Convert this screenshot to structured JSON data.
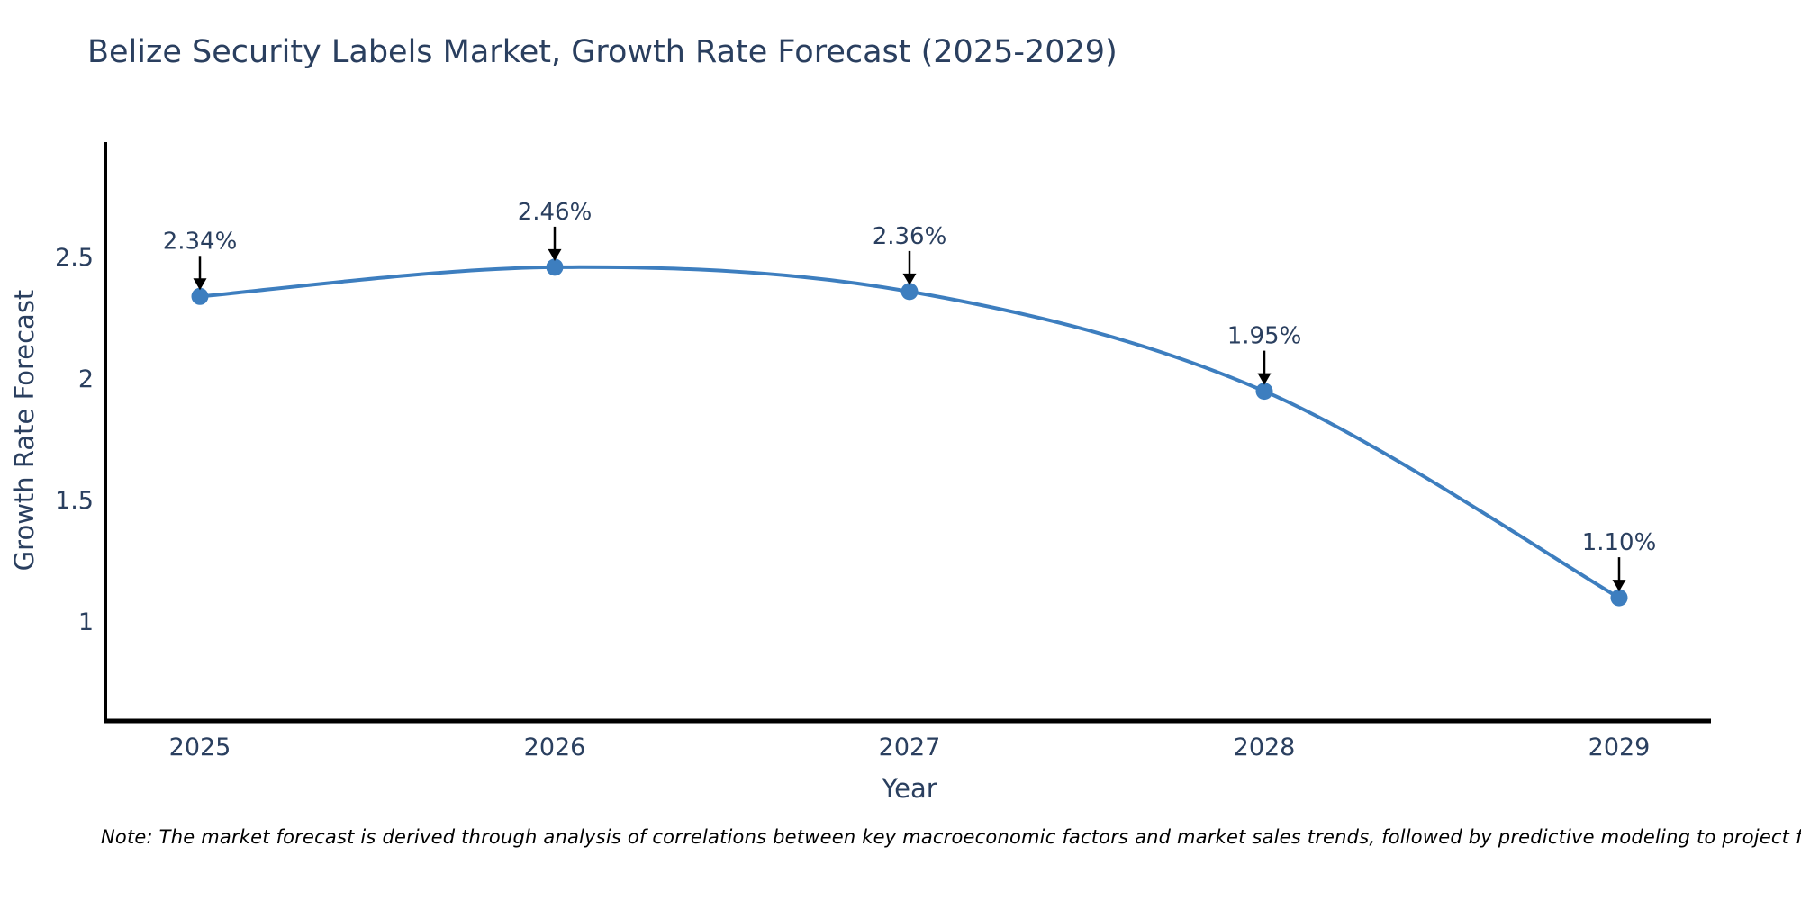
{
  "page": {
    "background": "#ffffff"
  },
  "chart_data": {
    "type": "line",
    "title": "Belize Security Labels Market, Growth Rate Forecast (2025-2029)",
    "xlabel": "Year",
    "ylabel": "Growth Rate Forecast",
    "categories": [
      "2025",
      "2026",
      "2027",
      "2028",
      "2029"
    ],
    "values": [
      2.34,
      2.46,
      2.36,
      1.95,
      1.1
    ],
    "point_labels": [
      "2.34%",
      "2.46%",
      "2.36%",
      "1.95%",
      "1.10%"
    ],
    "yticks": [
      {
        "value": 2.5,
        "label": "2.5"
      },
      {
        "value": 2.0,
        "label": "2"
      },
      {
        "value": 1.5,
        "label": "1.5"
      },
      {
        "value": 1.0,
        "label": "1"
      }
    ],
    "ylim": [
      0.593,
      2.967
    ],
    "line_shape": "spline",
    "grid": false,
    "legend_position": "none",
    "colors": {
      "line": "#3d7ebf",
      "marker": "#3d7ebf",
      "axis_text": "#2a3f5f",
      "annotation_text": "#2a3f5f",
      "spine": "#000000",
      "arrow": "#000000"
    }
  },
  "note": {
    "text": "Note: The market forecast is derived through analysis of correlations between key macroeconomic factors and market sales trends, followed by predictive modeling to project future sales"
  }
}
